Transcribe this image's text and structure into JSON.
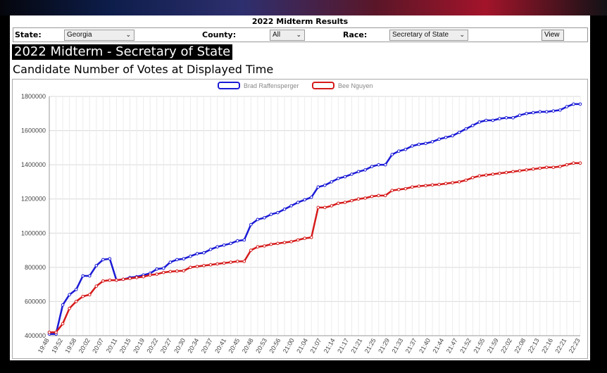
{
  "header": {
    "title": "2022 Midterm Results"
  },
  "filters": {
    "state_label": "State:",
    "state_value": "Georgia",
    "county_label": "County:",
    "county_value": "All",
    "race_label": "Race:",
    "race_value": "Secretary of State",
    "view_label": "View"
  },
  "page_title": "2022 Midterm - Secretary of State",
  "subtitle": "Candidate Number of Votes at Displayed Time",
  "colors": {
    "series1": "#1a1ad6",
    "series2": "#d61a1a",
    "grid": "#d9d9d9"
  },
  "chart_data": {
    "type": "line",
    "ylim": [
      400000,
      1800000
    ],
    "yticks": [
      400000,
      600000,
      800000,
      1000000,
      1200000,
      1400000,
      1600000,
      1800000
    ],
    "x_ticks": [
      "19:48",
      "19:52",
      "19:58",
      "20:02",
      "20:07",
      "20:11",
      "20:15",
      "20:19",
      "20:22",
      "20:27",
      "20:30",
      "20:34",
      "20:37",
      "20:41",
      "20:45",
      "20:48",
      "20:53",
      "20:56",
      "21:00",
      "21:04",
      "21:07",
      "21:14",
      "21:17",
      "21:21",
      "21:25",
      "21:29",
      "21:33",
      "21:37",
      "21:40",
      "21:44",
      "21:47",
      "21:52",
      "21:55",
      "21:59",
      "22:02",
      "22:08",
      "22:13",
      "22:16",
      "22:21",
      "22:23"
    ],
    "series": [
      {
        "name": "Brad Raffensperger",
        "color": "#1a1ad6",
        "values": [
          410000,
          410000,
          580000,
          640000,
          670000,
          750000,
          750000,
          810000,
          845000,
          850000,
          725000,
          730000,
          740000,
          745000,
          755000,
          765000,
          790000,
          795000,
          830000,
          845000,
          850000,
          865000,
          880000,
          885000,
          905000,
          920000,
          930000,
          940000,
          955000,
          960000,
          1050000,
          1080000,
          1090000,
          1110000,
          1120000,
          1140000,
          1160000,
          1180000,
          1195000,
          1210000,
          1270000,
          1280000,
          1300000,
          1320000,
          1330000,
          1345000,
          1360000,
          1370000,
          1390000,
          1400000,
          1400000,
          1460000,
          1480000,
          1490000,
          1510000,
          1520000,
          1525000,
          1535000,
          1550000,
          1560000,
          1570000,
          1590000,
          1610000,
          1630000,
          1650000,
          1660000,
          1660000,
          1670000,
          1675000,
          1675000,
          1690000,
          1700000,
          1705000,
          1710000,
          1710000,
          1715000,
          1720000,
          1740000,
          1755000,
          1755000
        ]
      },
      {
        "name": "Bee Nguyen",
        "color": "#d61a1a",
        "values": [
          420000,
          420000,
          470000,
          560000,
          600000,
          630000,
          640000,
          690000,
          720000,
          725000,
          725000,
          730000,
          735000,
          740000,
          745000,
          755000,
          760000,
          770000,
          775000,
          778000,
          780000,
          800000,
          805000,
          810000,
          815000,
          820000,
          825000,
          830000,
          835000,
          835000,
          900000,
          920000,
          925000,
          935000,
          940000,
          945000,
          950000,
          960000,
          970000,
          975000,
          1150000,
          1150000,
          1160000,
          1175000,
          1180000,
          1190000,
          1200000,
          1205000,
          1215000,
          1220000,
          1220000,
          1250000,
          1255000,
          1260000,
          1270000,
          1275000,
          1278000,
          1282000,
          1285000,
          1290000,
          1295000,
          1300000,
          1310000,
          1325000,
          1335000,
          1340000,
          1345000,
          1350000,
          1355000,
          1360000,
          1365000,
          1370000,
          1375000,
          1380000,
          1385000,
          1385000,
          1390000,
          1400000,
          1410000,
          1410000
        ]
      }
    ],
    "legend_position": "top-center",
    "grid": true
  }
}
